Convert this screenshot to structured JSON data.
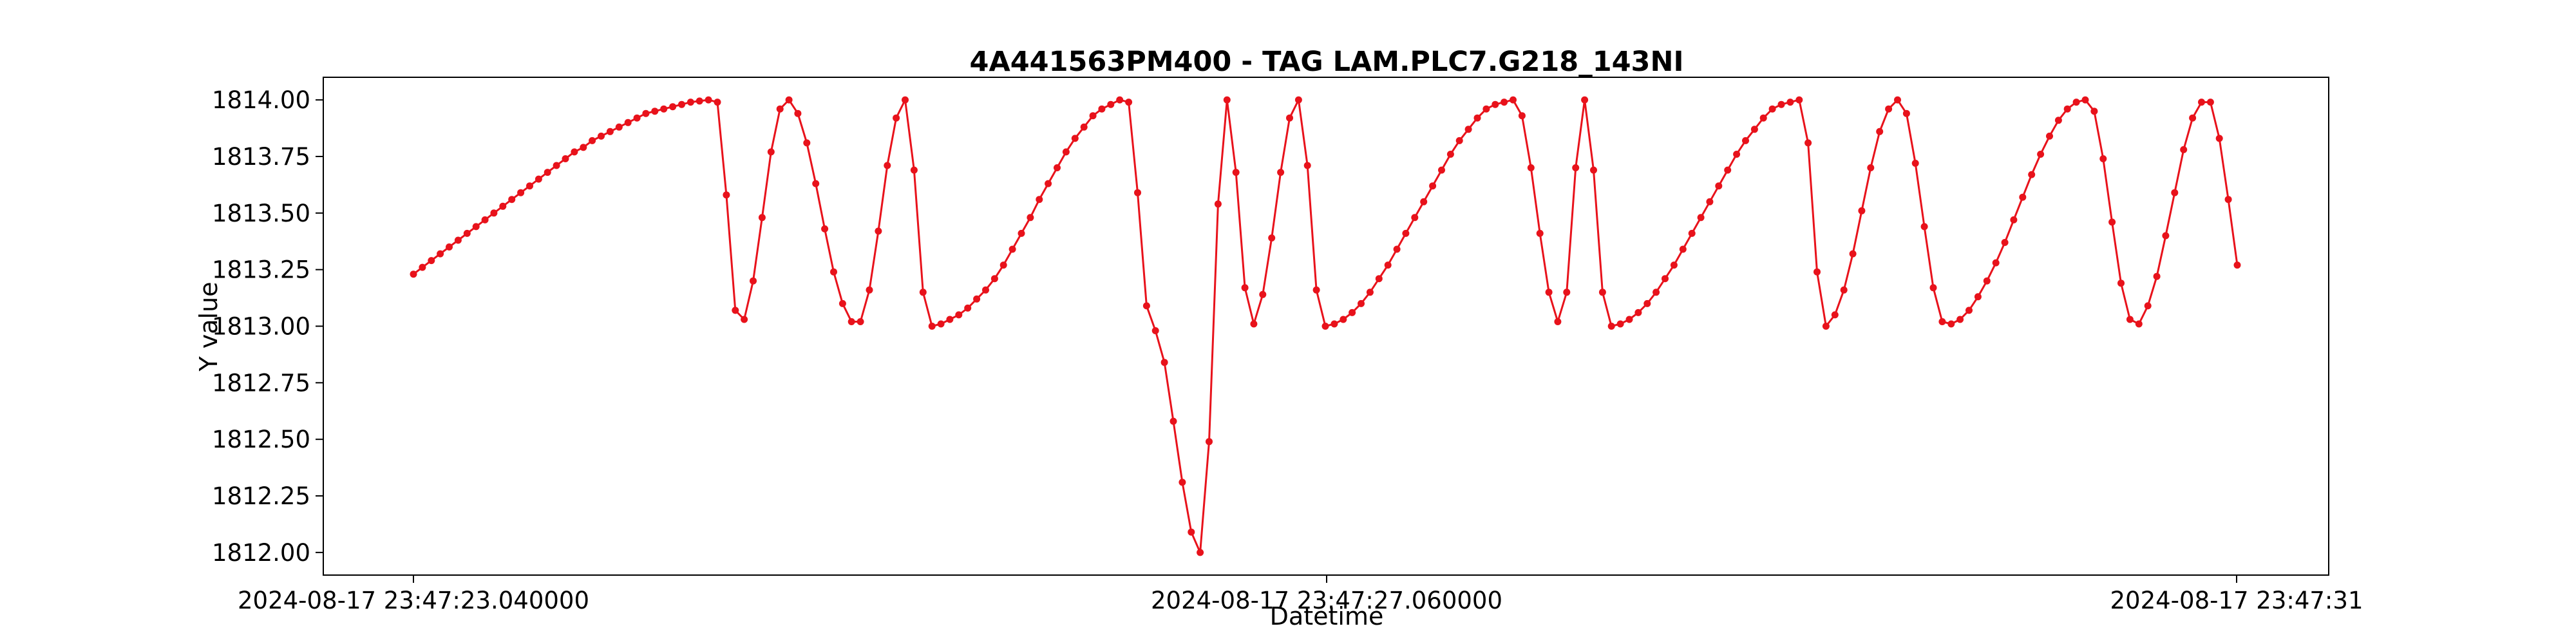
{
  "chart_data": {
    "type": "line",
    "title": "4A441563PM400 - TAG LAM.PLC7.G218_143NI",
    "xlabel": "Datetime",
    "ylabel": "Y value",
    "x_tick_labels": [
      "2024-08-17 23:47:23.040000",
      "2024-08-17 23:47:27.060000",
      "2024-08-17 23:47:31"
    ],
    "y_tick_labels": [
      "1812.00",
      "1812.25",
      "1812.50",
      "1812.75",
      "1813.00",
      "1813.25",
      "1813.50",
      "1813.75",
      "1814.00"
    ],
    "ylim": [
      1811.9,
      1814.1
    ],
    "grid": false,
    "color": "#e8121b",
    "marker": "circle",
    "series": [
      {
        "values": [
          1813.23,
          1813.26,
          1813.29,
          1813.32,
          1813.35,
          1813.38,
          1813.41,
          1813.44,
          1813.47,
          1813.5,
          1813.53,
          1813.56,
          1813.59,
          1813.62,
          1813.65,
          1813.68,
          1813.71,
          1813.74,
          1813.77,
          1813.79,
          1813.82,
          1813.84,
          1813.86,
          1813.88,
          1813.9,
          1813.92,
          1813.94,
          1813.95,
          1813.96,
          1813.97,
          1813.98,
          1813.99,
          1813.995,
          1814.0,
          1813.99,
          1813.58,
          1813.07,
          1813.03,
          1813.2,
          1813.48,
          1813.77,
          1813.96,
          1814.0,
          1813.94,
          1813.81,
          1813.63,
          1813.43,
          1813.24,
          1813.1,
          1813.02,
          1813.02,
          1813.16,
          1813.42,
          1813.71,
          1813.92,
          1814.0,
          1813.69,
          1813.15,
          1813.0,
          1813.01,
          1813.03,
          1813.05,
          1813.08,
          1813.12,
          1813.16,
          1813.21,
          1813.27,
          1813.34,
          1813.41,
          1813.48,
          1813.56,
          1813.63,
          1813.7,
          1813.77,
          1813.83,
          1813.88,
          1813.93,
          1813.96,
          1813.98,
          1814.0,
          1813.99,
          1813.59,
          1813.09,
          1812.98,
          1812.84,
          1812.58,
          1812.31,
          1812.09,
          1812.0,
          1812.49,
          1813.54,
          1814.0,
          1813.68,
          1813.17,
          1813.01,
          1813.14,
          1813.39,
          1813.68,
          1813.92,
          1814.0,
          1813.71,
          1813.16,
          1813.0,
          1813.01,
          1813.03,
          1813.06,
          1813.1,
          1813.15,
          1813.21,
          1813.27,
          1813.34,
          1813.41,
          1813.48,
          1813.55,
          1813.62,
          1813.69,
          1813.76,
          1813.82,
          1813.87,
          1813.92,
          1813.96,
          1813.98,
          1813.99,
          1814.0,
          1813.93,
          1813.7,
          1813.41,
          1813.15,
          1813.02,
          1813.15,
          1813.7,
          1814.0,
          1813.69,
          1813.15,
          1813.0,
          1813.01,
          1813.03,
          1813.06,
          1813.1,
          1813.15,
          1813.21,
          1813.27,
          1813.34,
          1813.41,
          1813.48,
          1813.55,
          1813.62,
          1813.69,
          1813.76,
          1813.82,
          1813.87,
          1813.92,
          1813.96,
          1813.98,
          1813.99,
          1814.0,
          1813.81,
          1813.24,
          1813.0,
          1813.05,
          1813.16,
          1813.32,
          1813.51,
          1813.7,
          1813.86,
          1813.96,
          1814.0,
          1813.94,
          1813.72,
          1813.44,
          1813.17,
          1813.02,
          1813.01,
          1813.03,
          1813.07,
          1813.13,
          1813.2,
          1813.28,
          1813.37,
          1813.47,
          1813.57,
          1813.67,
          1813.76,
          1813.84,
          1813.91,
          1813.96,
          1813.99,
          1814.0,
          1813.95,
          1813.74,
          1813.46,
          1813.19,
          1813.03,
          1813.01,
          1813.09,
          1813.22,
          1813.4,
          1813.59,
          1813.78,
          1813.92,
          1813.99,
          1813.99,
          1813.83,
          1813.56,
          1813.27
        ]
      }
    ]
  }
}
